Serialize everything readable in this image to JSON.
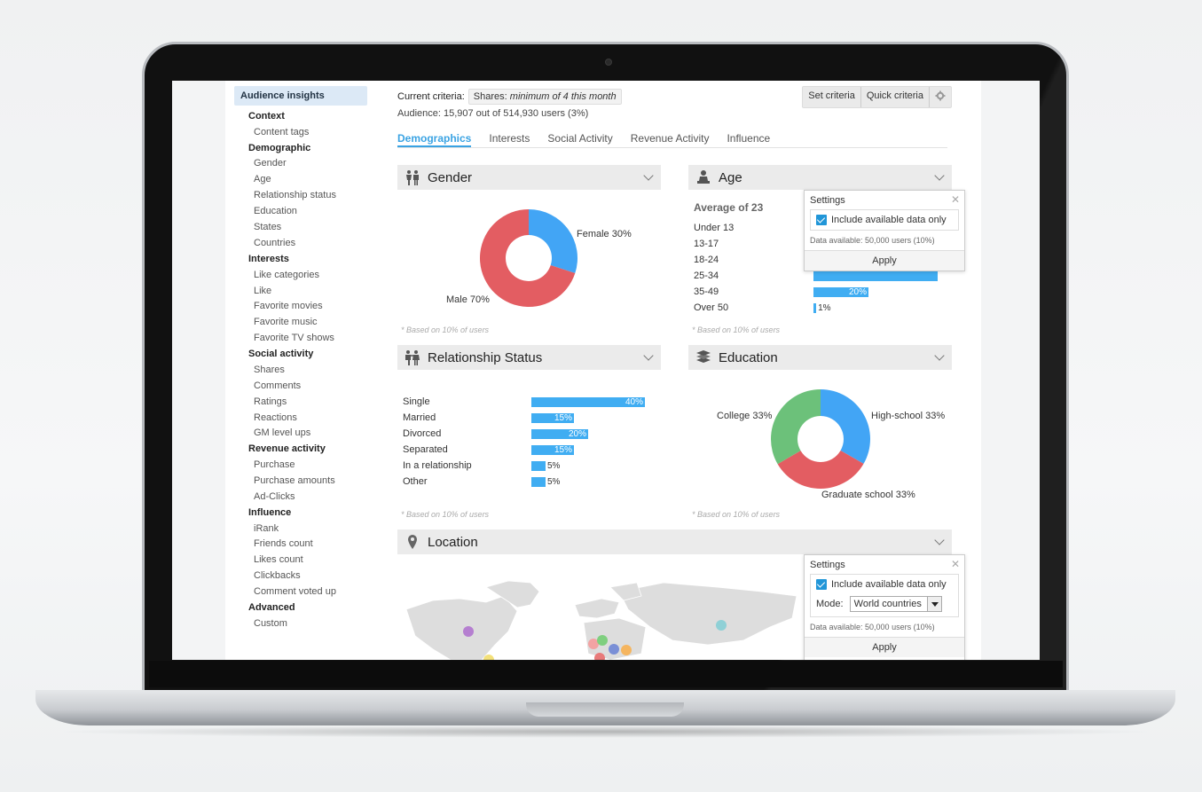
{
  "sidebar": {
    "header": "Audience insights",
    "sections": [
      {
        "title": "Context",
        "items": [
          "Content tags"
        ]
      },
      {
        "title": "Demographic",
        "items": [
          "Gender",
          "Age",
          "Relationship status",
          "Education",
          "States",
          "Countries"
        ]
      },
      {
        "title": "Interests",
        "items": [
          "Like categories",
          "Like",
          "Favorite movies",
          "Favorite music",
          "Favorite TV shows"
        ]
      },
      {
        "title": "Social activity",
        "items": [
          "Shares",
          "Comments",
          "Ratings",
          "Reactions",
          "GM level ups"
        ]
      },
      {
        "title": "Revenue activity",
        "items": [
          "Purchase",
          "Purchase amounts",
          "Ad-Clicks"
        ]
      },
      {
        "title": "Influence",
        "items": [
          "iRank",
          "Friends count",
          "Likes count",
          "Clickbacks",
          "Comment voted up"
        ]
      },
      {
        "title": "Advanced",
        "items": [
          "Custom"
        ]
      }
    ]
  },
  "criteria": {
    "label": "Current criteria:",
    "chip_prefix": "Shares:",
    "chip_value": "minimum of 4 this month",
    "audience": "Audience: 15,907 out of 514,930 users (3%)"
  },
  "toolbar": {
    "set_criteria": "Set criteria",
    "quick_criteria": "Quick criteria"
  },
  "tabs": [
    "Demographics",
    "Interests",
    "Social Activity",
    "Revenue Activity",
    "Influence"
  ],
  "panels": {
    "gender": {
      "title": "Gender",
      "slices": [
        {
          "label": "Female 30%",
          "value": 30,
          "color": "#42a5f5"
        },
        {
          "label": "Male 70%",
          "value": 70,
          "color": "#e35d62"
        }
      ],
      "footnote": "* Based on 10% of users"
    },
    "age": {
      "title": "Age",
      "average": "Average of 23",
      "rows": [
        {
          "label": "Under 13",
          "value": 0,
          "text": ""
        },
        {
          "label": "13-17",
          "value": 0,
          "text": ""
        },
        {
          "label": "18-24",
          "value": 0,
          "text": ""
        },
        {
          "label": "25-34",
          "value": 45,
          "text": ""
        },
        {
          "label": "35-49",
          "value": 20,
          "text": "20%"
        },
        {
          "label": "Over 50",
          "value": 1,
          "text": "1%"
        }
      ],
      "footnote": "* Based on 10% of users"
    },
    "relationship": {
      "title": "Relationship Status",
      "rows": [
        {
          "label": "Single",
          "value": 40,
          "text": "40%"
        },
        {
          "label": "Married",
          "value": 15,
          "text": "15%"
        },
        {
          "label": "Divorced",
          "value": 20,
          "text": "20%"
        },
        {
          "label": "Separated",
          "value": 15,
          "text": "15%"
        },
        {
          "label": "In a relationship",
          "value": 5,
          "text": "5%"
        },
        {
          "label": "Other",
          "value": 5,
          "text": "5%"
        }
      ],
      "footnote": "* Based on 10% of users"
    },
    "education": {
      "title": "Education",
      "slices": [
        {
          "label": "High-school 33%",
          "value": 33.3,
          "color": "#42a5f5"
        },
        {
          "label": "Graduate school 33%",
          "value": 33.3,
          "color": "#e35d62"
        },
        {
          "label": "College 33%",
          "value": 33.4,
          "color": "#6cc17a"
        }
      ],
      "footnote": "* Based on 10% of users"
    },
    "location": {
      "title": "Location"
    }
  },
  "age_settings": {
    "title": "Settings",
    "checkbox": "Include available data only",
    "available": "Data available: 50,000 users (10%)",
    "apply": "Apply"
  },
  "location_settings": {
    "title": "Settings",
    "checkbox": "Include available data only",
    "mode_label": "Mode:",
    "mode_value": "World countries",
    "available": "Data available: 50,000 users (10%)",
    "apply": "Apply"
  },
  "map_markers": [
    {
      "color": "#b57fd0"
    },
    {
      "color": "#8fd0d6"
    },
    {
      "color": "#f2a3a3"
    },
    {
      "color": "#7fcf7f"
    },
    {
      "color": "#7a8fd6"
    },
    {
      "color": "#f5b55f"
    },
    {
      "color": "#e87a7a"
    },
    {
      "color": "#f3e07a"
    }
  ]
}
